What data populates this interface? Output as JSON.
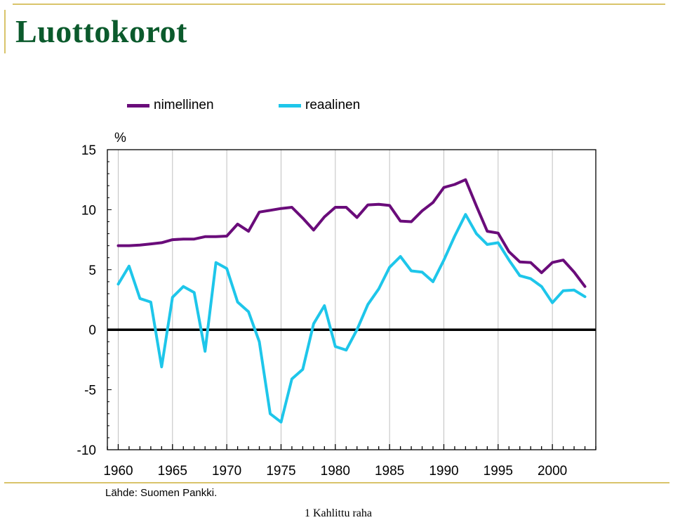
{
  "title": "Luottokorot",
  "legend": {
    "nominal_label": "nimellinen",
    "real_label": "reaalinen"
  },
  "unit": "%",
  "source": "Lähde: Suomen Pankki.",
  "footer": "1 Kahlittu raha",
  "colors": {
    "nominal": "#6a0c7a",
    "real": "#1ec6ea",
    "grid": "#c0c0c0",
    "zero_line": "#000000",
    "title": "#0b5a2c",
    "frame": "#d9c46a"
  },
  "chart_data": {
    "type": "line",
    "xlim": [
      1959,
      2004
    ],
    "ylim": [
      -10,
      15
    ],
    "x_ticks": [
      "1960",
      "1965",
      "1970",
      "1975",
      "1980",
      "1985",
      "1990",
      "1995",
      "2000"
    ],
    "y_ticks": [
      "15",
      "10",
      "5",
      "0",
      "-5",
      "-10"
    ],
    "grid": "vertical, every 5 years",
    "legend_position": "top",
    "series": [
      {
        "name": "nimellinen",
        "color": "#6a0c7a",
        "x": [
          1960,
          1961,
          1962,
          1963,
          1964,
          1965,
          1966,
          1967,
          1968,
          1969,
          1970,
          1971,
          1972,
          1973,
          1974,
          1975,
          1976,
          1977,
          1978,
          1979,
          1980,
          1981,
          1982,
          1983,
          1984,
          1985,
          1986,
          1987,
          1988,
          1989,
          1990,
          1991,
          1992,
          1993,
          1994,
          1995,
          1996,
          1997,
          1998,
          1999,
          2000,
          2001,
          2002,
          2003
        ],
        "values": [
          7.0,
          7.0,
          7.05,
          7.15,
          7.25,
          7.5,
          7.55,
          7.55,
          7.75,
          7.75,
          7.8,
          8.8,
          8.2,
          9.8,
          9.95,
          10.1,
          10.2,
          9.3,
          8.3,
          9.4,
          10.2,
          10.2,
          9.35,
          10.4,
          10.45,
          10.35,
          9.05,
          9.0,
          9.9,
          10.6,
          11.85,
          12.1,
          12.5,
          10.3,
          8.2,
          8.05,
          6.5,
          5.65,
          5.6,
          4.75,
          5.6,
          5.8,
          4.8,
          3.6
        ]
      },
      {
        "name": "reaalinen",
        "color": "#1ec6ea",
        "x": [
          1960,
          1961,
          1962,
          1963,
          1964,
          1965,
          1966,
          1967,
          1968,
          1969,
          1970,
          1971,
          1972,
          1973,
          1974,
          1975,
          1976,
          1977,
          1978,
          1979,
          1980,
          1981,
          1982,
          1983,
          1984,
          1985,
          1986,
          1987,
          1988,
          1989,
          1990,
          1991,
          1992,
          1993,
          1994,
          1995,
          1996,
          1997,
          1998,
          1999,
          2000,
          2001,
          2002,
          2003
        ],
        "values": [
          3.8,
          5.3,
          2.6,
          2.3,
          -3.1,
          2.7,
          3.6,
          3.1,
          -1.8,
          5.6,
          5.1,
          2.3,
          1.5,
          -1.0,
          -7.0,
          -7.7,
          -4.1,
          -3.3,
          0.5,
          2.0,
          -1.4,
          -1.7,
          0.0,
          2.1,
          3.4,
          5.2,
          6.1,
          4.9,
          4.8,
          4.0,
          5.8,
          7.8,
          9.6,
          8.0,
          7.1,
          7.25,
          5.8,
          4.5,
          4.25,
          3.6,
          2.25,
          3.25,
          3.3,
          2.75
        ]
      }
    ]
  }
}
